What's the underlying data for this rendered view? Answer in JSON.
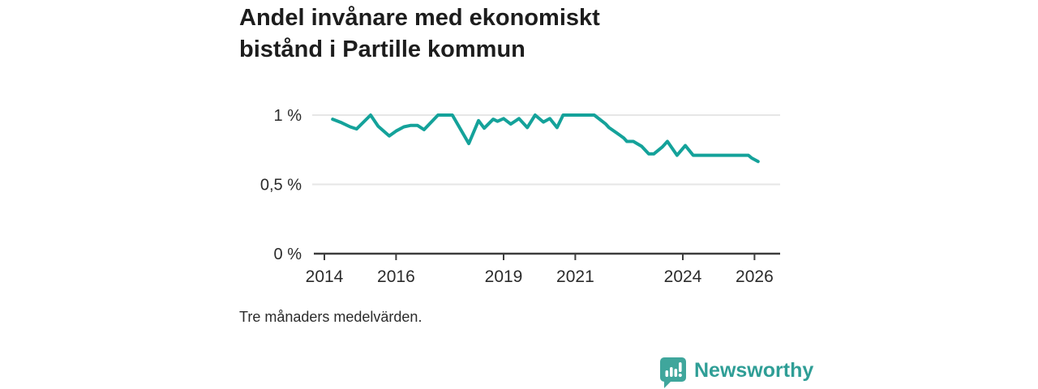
{
  "title": {
    "line1": "Andel invånare med ekonomiskt",
    "line2": "bistånd i Partille kommun"
  },
  "footnote": "Tre månaders medelvärden.",
  "brand": {
    "name": "Newsworthy",
    "icon": "bar-chart-speech-bubble-icon"
  },
  "colors": {
    "line": "#14a29a",
    "grid": "#e6e6e6",
    "axis": "#3d3d3d",
    "tick_text": "#2b2b2b",
    "brand_icon": "#3fa69c",
    "brand_text": "#2f9e96"
  },
  "chart_data": {
    "type": "line",
    "title": "Andel invånare med ekonomiskt bistånd i Partille kommun",
    "xlabel": "",
    "ylabel": "",
    "grid": "horizontal gridlines at 0.5 % and 1 %",
    "legend": "none",
    "xlim": [
      2013.7,
      2026.72
    ],
    "ylim": [
      0,
      1.15
    ],
    "y_ticks": [
      {
        "value": 1,
        "label": "1 %"
      },
      {
        "value": 0.5,
        "label": "0,5 %"
      },
      {
        "value": 0,
        "label": "0 %"
      }
    ],
    "x_ticks": [
      {
        "value": 2014,
        "label": "2014"
      },
      {
        "value": 2016,
        "label": "2016"
      },
      {
        "value": 2019,
        "label": "2019"
      },
      {
        "value": 2021,
        "label": "2021"
      },
      {
        "value": 2024,
        "label": "2024"
      },
      {
        "value": 2026,
        "label": "2026"
      }
    ],
    "series": [
      {
        "name": "Andel invånare med ekonomiskt bistånd (%)",
        "points": [
          [
            2014.23,
            0.97
          ],
          [
            2014.48,
            0.945
          ],
          [
            2014.72,
            0.915
          ],
          [
            2014.9,
            0.9
          ],
          [
            2015.29,
            1.0
          ],
          [
            2015.5,
            0.92
          ],
          [
            2015.81,
            0.85
          ],
          [
            2016.0,
            0.885
          ],
          [
            2016.22,
            0.915
          ],
          [
            2016.4,
            0.925
          ],
          [
            2016.6,
            0.925
          ],
          [
            2016.78,
            0.895
          ],
          [
            2017.17,
            1.0
          ],
          [
            2017.57,
            1.0
          ],
          [
            2018.03,
            0.795
          ],
          [
            2018.3,
            0.96
          ],
          [
            2018.46,
            0.905
          ],
          [
            2018.71,
            0.97
          ],
          [
            2018.83,
            0.955
          ],
          [
            2019.0,
            0.975
          ],
          [
            2019.2,
            0.935
          ],
          [
            2019.43,
            0.975
          ],
          [
            2019.66,
            0.91
          ],
          [
            2019.88,
            1.0
          ],
          [
            2020.11,
            0.95
          ],
          [
            2020.29,
            0.975
          ],
          [
            2020.49,
            0.91
          ],
          [
            2020.66,
            1.0
          ],
          [
            2021.53,
            1.0
          ],
          [
            2021.85,
            0.935
          ],
          [
            2021.94,
            0.91
          ],
          [
            2022.19,
            0.865
          ],
          [
            2022.35,
            0.835
          ],
          [
            2022.44,
            0.81
          ],
          [
            2022.62,
            0.81
          ],
          [
            2022.85,
            0.775
          ],
          [
            2023.05,
            0.72
          ],
          [
            2023.19,
            0.72
          ],
          [
            2023.43,
            0.77
          ],
          [
            2023.57,
            0.81
          ],
          [
            2023.84,
            0.71
          ],
          [
            2024.07,
            0.78
          ],
          [
            2024.29,
            0.71
          ],
          [
            2025.83,
            0.71
          ],
          [
            2025.92,
            0.69
          ],
          [
            2026.1,
            0.665
          ]
        ]
      }
    ]
  }
}
